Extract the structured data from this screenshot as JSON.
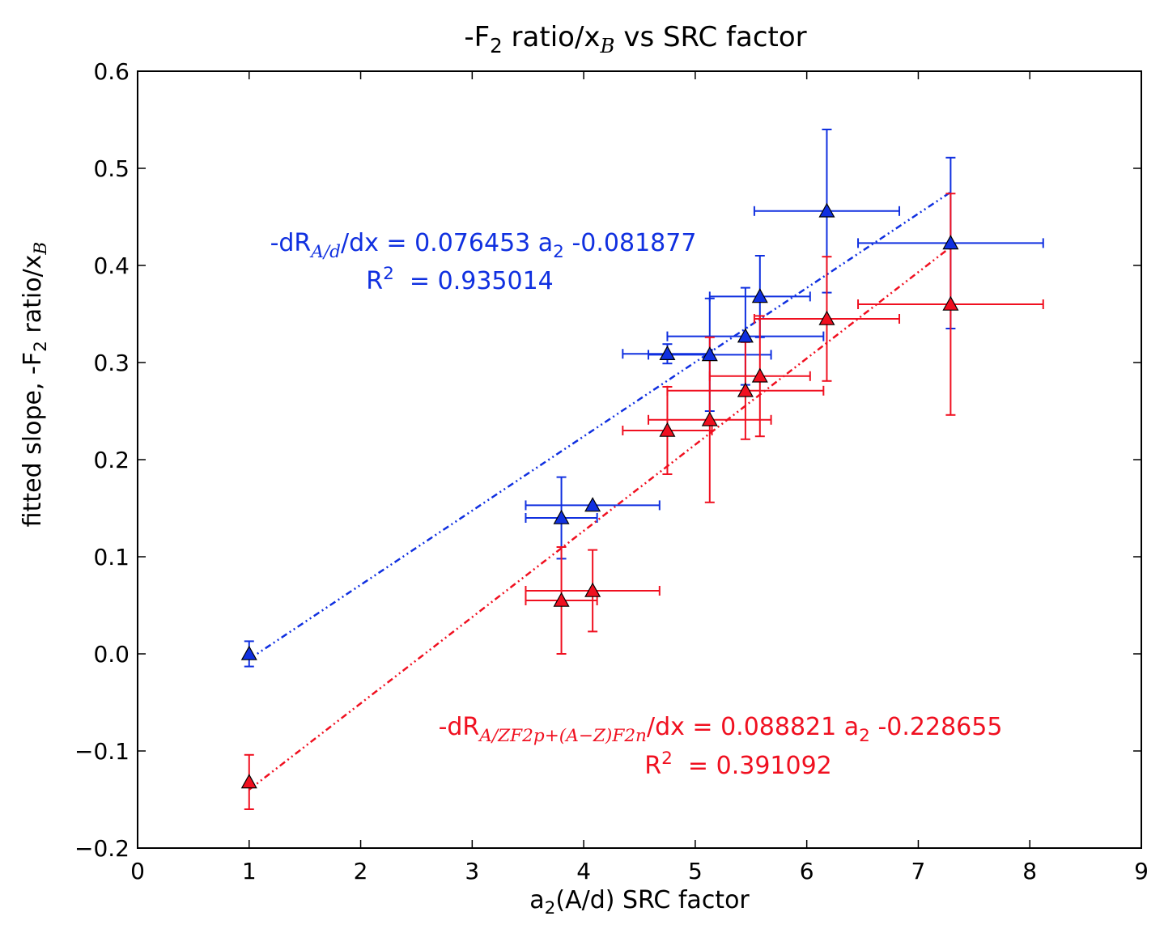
{
  "chart_data": {
    "type": "scatter",
    "title": {
      "pre": "-F",
      "sub1": "2",
      "mid": " ratio/x",
      "sub2": "B",
      "post": " vs SRC factor"
    },
    "xlabel": {
      "pre": "a",
      "sub": "2",
      "post": "(A/d) SRC factor"
    },
    "ylabel": {
      "pre": "fitted slope, -F",
      "sub1": "2",
      "mid": " ratio/x",
      "sub2": "B"
    },
    "xlim": [
      0,
      9
    ],
    "ylim": [
      -0.2,
      0.6
    ],
    "x_ticks": [
      0,
      1,
      2,
      3,
      4,
      5,
      6,
      7,
      8,
      9
    ],
    "y_ticks": [
      -0.2,
      -0.1,
      0.0,
      0.1,
      0.2,
      0.3,
      0.4,
      0.5,
      0.6
    ],
    "x_tick_labels": [
      "0",
      "1",
      "2",
      "3",
      "4",
      "5",
      "6",
      "7",
      "8",
      "9"
    ],
    "y_tick_labels": [
      "−0.2",
      "−0.1",
      "0.0",
      "0.1",
      "0.2",
      "0.3",
      "0.4",
      "0.5",
      "0.6"
    ],
    "grid": false,
    "series": [
      {
        "color": "#1030e0",
        "marker": "triangle",
        "points": [
          {
            "x": 1.0,
            "y": 0.0,
            "xerr": 0.0,
            "yerr": 0.013
          },
          {
            "x": 3.8,
            "y": 0.14,
            "xerr": 0.32,
            "yerr": 0.042
          },
          {
            "x": 4.08,
            "y": 0.153,
            "xerr": 0.6,
            "yerr": 0.0
          },
          {
            "x": 4.75,
            "y": 0.309,
            "xerr": 0.4,
            "yerr": 0.01
          },
          {
            "x": 5.13,
            "y": 0.308,
            "xerr": 0.55,
            "yerr": 0.058
          },
          {
            "x": 5.45,
            "y": 0.327,
            "xerr": 0.7,
            "yerr": 0.05
          },
          {
            "x": 5.58,
            "y": 0.368,
            "xerr": 0.45,
            "yerr": 0.042
          },
          {
            "x": 6.18,
            "y": 0.456,
            "xerr": 0.65,
            "yerr": 0.084
          },
          {
            "x": 7.29,
            "y": 0.423,
            "xerr": 0.83,
            "yerr": 0.088
          }
        ],
        "fit": {
          "slope": 0.076453,
          "intercept": -0.081877,
          "x_range": [
            1.0,
            7.29
          ],
          "style": "dash-dot-dot"
        },
        "equation": {
          "pre": "-dR",
          "sub": "A/d",
          "post": "/dx = 0.076453 a",
          "sub2": "2",
          "post2": " -0.081877"
        },
        "r2": {
          "pre": "R",
          "sup": "2",
          "post": "  = 0.935014"
        }
      },
      {
        "color": "#f01020",
        "marker": "triangle",
        "points": [
          {
            "x": 1.0,
            "y": -0.132,
            "xerr": 0.0,
            "yerr": 0.028
          },
          {
            "x": 3.8,
            "y": 0.055,
            "xerr": 0.32,
            "yerr": 0.055
          },
          {
            "x": 4.08,
            "y": 0.065,
            "xerr": 0.6,
            "yerr": 0.042
          },
          {
            "x": 4.75,
            "y": 0.23,
            "xerr": 0.4,
            "yerr": 0.045
          },
          {
            "x": 5.13,
            "y": 0.241,
            "xerr": 0.55,
            "yerr": 0.085
          },
          {
            "x": 5.45,
            "y": 0.271,
            "xerr": 0.7,
            "yerr": 0.05
          },
          {
            "x": 5.58,
            "y": 0.286,
            "xerr": 0.45,
            "yerr": 0.062
          },
          {
            "x": 6.18,
            "y": 0.345,
            "xerr": 0.65,
            "yerr": 0.064
          },
          {
            "x": 7.29,
            "y": 0.36,
            "xerr": 0.83,
            "yerr": 0.114
          }
        ],
        "fit": {
          "slope": 0.088821,
          "intercept": -0.228655,
          "x_range": [
            1.0,
            7.29
          ],
          "style": "dash-dot-dot"
        },
        "equation": {
          "pre": "-dR",
          "sub": "A/ZF2p+(A−Z)F2n",
          "post": "/dx = 0.088821 a",
          "sub2": "2",
          "post2": " -0.228655"
        },
        "r2": {
          "pre": "R",
          "sup": "2",
          "post": "  = 0.391092"
        }
      }
    ]
  }
}
